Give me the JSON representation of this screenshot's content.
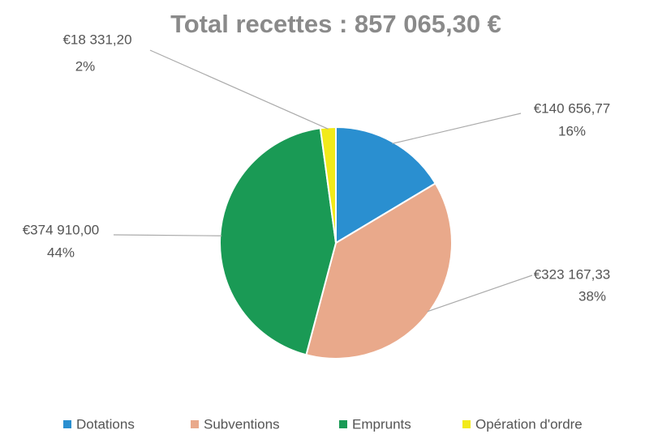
{
  "chart_data": {
    "type": "pie",
    "title": "Total recettes : 857 065,30 €",
    "categories": [
      "Dotations",
      "Subventions",
      "Emprunts",
      "Opération d'ordre"
    ],
    "values": [
      140656.77,
      323167.33,
      374910.0,
      18331.2
    ],
    "value_labels": [
      "€140 656,77",
      "€323 167,33",
      "€374 910,00",
      "€18 331,20"
    ],
    "percent_labels": [
      "16%",
      "38%",
      "44%",
      "2%"
    ],
    "colors": [
      "#2a8fd0",
      "#e9a98b",
      "#1a9a55",
      "#f2ea1a"
    ],
    "legend": "bottom"
  }
}
